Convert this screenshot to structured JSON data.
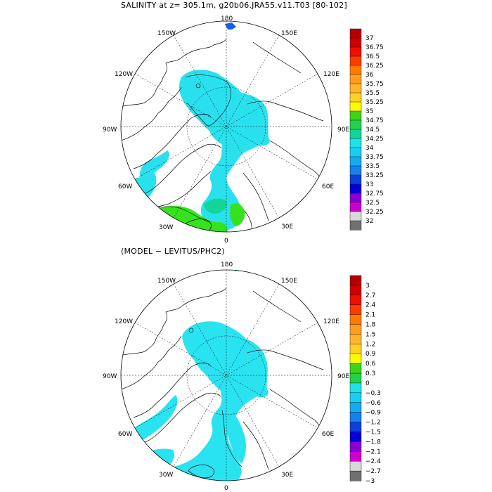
{
  "title_top": "SALINITY at z=  305.1m, g20b06.JRA55.v11.T03 [80-102]",
  "title_bottom": "(MODEL − LEVITUS/PHC2)",
  "longitude_labels": [
    "180",
    "150E",
    "120E",
    "90E",
    "60E",
    "30E",
    "0",
    "30W",
    "60W",
    "90W",
    "120W",
    "150W"
  ],
  "colors": {
    "ocean_fill": "#29e1ee",
    "ocean_fill_diff": "#2ae3f0",
    "dark_cyan": "#00c4df",
    "green_bright": "#36e21c",
    "green_mid": "#22d24c",
    "green_teal": "#10d59a",
    "blue": "#1560f0"
  },
  "colorbar_top": {
    "labels": [
      "37",
      "36.75",
      "36.5",
      "36.25",
      "36",
      "35.75",
      "35.5",
      "35.25",
      "35",
      "34.75",
      "34.5",
      "34.25",
      "34",
      "33.75",
      "33.5",
      "33.25",
      "33",
      "32.75",
      "32.5",
      "32.25",
      "32"
    ],
    "colors": [
      "#b30000",
      "#d00000",
      "#f01000",
      "#fe3c00",
      "#ff7b00",
      "#ff9e22",
      "#ffb52e",
      "#ffd028",
      "#fffa00",
      "#3ed21a",
      "#22d24c",
      "#12d59a",
      "#20e1e8",
      "#1ccdf2",
      "#18aaf0",
      "#1680ee",
      "#0e40d8",
      "#0000d8",
      "#8a00d0",
      "#cc00cc",
      "#d8d8d8",
      "#707070"
    ]
  },
  "colorbar_bottom": {
    "labels": [
      "3",
      "2.7",
      "2.4",
      "2.1",
      "1.8",
      "1.5",
      "1.2",
      "0.9",
      "0.6",
      "0.3",
      "0",
      "−0.3",
      "−0.6",
      "−0.9",
      "−1.2",
      "−1.5",
      "−1.8",
      "−2.1",
      "−2.4",
      "−2.7",
      "−3"
    ],
    "colors": [
      "#b30000",
      "#d00000",
      "#f01000",
      "#fe3c00",
      "#ff7b00",
      "#ff9e22",
      "#ffb52e",
      "#ffd028",
      "#fffa00",
      "#3ed21a",
      "#22d24c",
      "#20e1e8",
      "#1ccdf2",
      "#18aaf0",
      "#1680ee",
      "#0e40d8",
      "#0000d8",
      "#8a00d0",
      "#cc00cc",
      "#d8d8d8",
      "#707070"
    ]
  }
}
